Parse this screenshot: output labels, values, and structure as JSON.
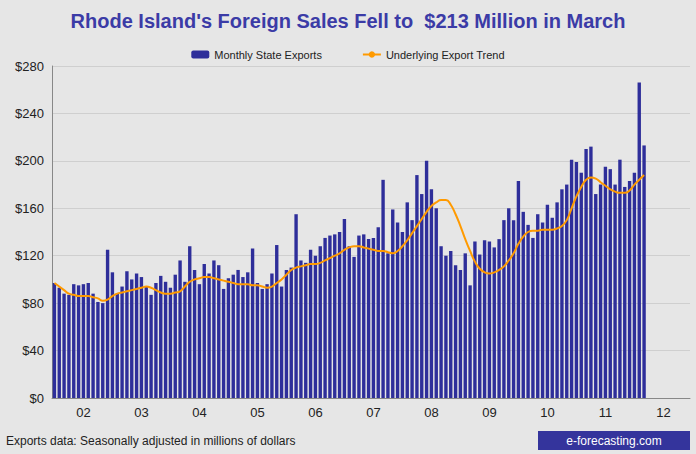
{
  "chart_data": {
    "type": "bar",
    "title": "Rhode Island's Foreign Sales Fell to  $213 Million in March",
    "annotations": [
      "Exports data: Seasonally adjusted in millions of dollars",
      "e-forecasting.com"
    ],
    "categories": [
      null,
      null,
      null,
      null,
      null,
      null,
      "02",
      null,
      null,
      null,
      null,
      null,
      null,
      null,
      null,
      null,
      null,
      null,
      "03",
      null,
      null,
      null,
      null,
      null,
      null,
      null,
      null,
      null,
      null,
      null,
      "04",
      null,
      null,
      null,
      null,
      null,
      null,
      null,
      null,
      null,
      null,
      null,
      "05",
      null,
      null,
      null,
      null,
      null,
      null,
      null,
      null,
      null,
      null,
      null,
      "06",
      null,
      null,
      null,
      null,
      null,
      null,
      null,
      null,
      null,
      null,
      null,
      "07",
      null,
      null,
      null,
      null,
      null,
      null,
      null,
      null,
      null,
      null,
      null,
      "08",
      null,
      null,
      null,
      null,
      null,
      null,
      null,
      null,
      null,
      null,
      null,
      "09",
      null,
      null,
      null,
      null,
      null,
      null,
      null,
      null,
      null,
      null,
      null,
      "10",
      null,
      null,
      null,
      null,
      null,
      null,
      null,
      null,
      null,
      null,
      null,
      "11",
      null,
      null,
      null,
      null,
      null,
      null,
      null,
      null,
      null,
      null,
      null,
      "12",
      null,
      null,
      null,
      null,
      null
    ],
    "series": [
      {
        "name": "Monthly State Exports",
        "type": "bar",
        "color": "#2e2e9a",
        "values": [
          97,
          93,
          88,
          87,
          96,
          95,
          96,
          97,
          88,
          81,
          80,
          125,
          106,
          88,
          94,
          107,
          100,
          105,
          102,
          94,
          87,
          97,
          103,
          98,
          93,
          104,
          116,
          98,
          128,
          108,
          96,
          113,
          105,
          116,
          112,
          92,
          101,
          104,
          108,
          102,
          106,
          126,
          97,
          92,
          96,
          105,
          129,
          94,
          108,
          110,
          155,
          116,
          114,
          125,
          120,
          128,
          135,
          137,
          138,
          140,
          151,
          128,
          119,
          137,
          138,
          134,
          135,
          144,
          184,
          122,
          159,
          148,
          140,
          165,
          150,
          188,
          172,
          200,
          176,
          160,
          128,
          120,
          124,
          112,
          108,
          122,
          95,
          132,
          121,
          133,
          132,
          127,
          134,
          150,
          160,
          150,
          183,
          157,
          146,
          135,
          155,
          148,
          163,
          152,
          165,
          176,
          180,
          201,
          199,
          190,
          210,
          212,
          172,
          180,
          195,
          193,
          180,
          201,
          178,
          183,
          190,
          266,
          213,
          null,
          null,
          null,
          null,
          null,
          null,
          null,
          null,
          null
        ]
      },
      {
        "name": "Underlying Export Trend",
        "type": "line",
        "color": "#ff9a00",
        "values": [
          97,
          94,
          91,
          88,
          87,
          86,
          86,
          86,
          85,
          84,
          82,
          83,
          86,
          88,
          89,
          90,
          91,
          92,
          93,
          94,
          93,
          91,
          89,
          88,
          88,
          89,
          90,
          94,
          98,
          100,
          101,
          102,
          102,
          101,
          100,
          99,
          98,
          97,
          96,
          96,
          96,
          95,
          95,
          94,
          93,
          94,
          97,
          100,
          104,
          108,
          110,
          111,
          112,
          113,
          113,
          114,
          116,
          118,
          120,
          122,
          125,
          127,
          128,
          128,
          127,
          126,
          125,
          124,
          124,
          123,
          122,
          124,
          128,
          133,
          139,
          145,
          151,
          157,
          162,
          165,
          167,
          167,
          163,
          155,
          145,
          134,
          124,
          115,
          109,
          106,
          105,
          106,
          108,
          111,
          116,
          122,
          130,
          136,
          140,
          141,
          141,
          142,
          142,
          142,
          143,
          145,
          150,
          160,
          170,
          178,
          184,
          186,
          185,
          182,
          179,
          176,
          174,
          173,
          173,
          175,
          180,
          184,
          188,
          null,
          null,
          null,
          null,
          null,
          null,
          null,
          null,
          null
        ]
      }
    ],
    "ylim": [
      0,
      280
    ],
    "yticks": [
      {
        "value": 0,
        "label": "$0"
      },
      {
        "value": 40,
        "label": "$40"
      },
      {
        "value": 80,
        "label": "$80"
      },
      {
        "value": 120,
        "label": "$120"
      },
      {
        "value": 160,
        "label": "$160"
      },
      {
        "value": 200,
        "label": "$200"
      },
      {
        "value": 240,
        "label": "$240"
      },
      {
        "value": 280,
        "label": "$280"
      }
    ],
    "grid": true,
    "legend": "top"
  }
}
